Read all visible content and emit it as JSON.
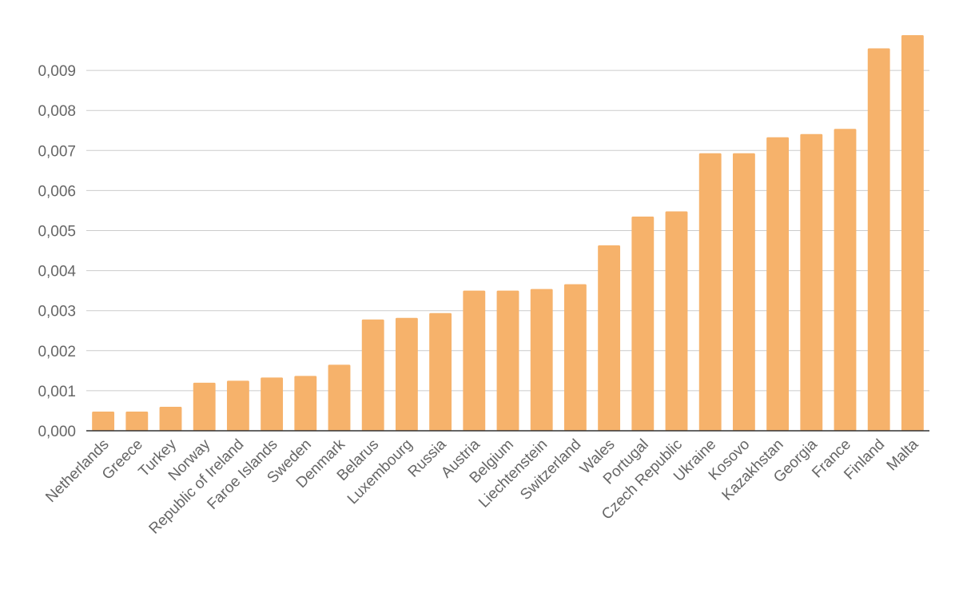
{
  "chart_data": {
    "type": "bar",
    "title": "",
    "xlabel": "",
    "ylabel": "",
    "ylim": [
      0,
      0.0099
    ],
    "yticks": [
      0,
      0.001,
      0.002,
      0.003,
      0.004,
      0.005,
      0.006,
      0.007,
      0.008,
      0.009
    ],
    "ytick_labels": [
      "0,000",
      "0,001",
      "0,002",
      "0,003",
      "0,004",
      "0,005",
      "0,006",
      "0,007",
      "0,008",
      "0,009"
    ],
    "grid": true,
    "legend": "none",
    "bar_color": "#F6B26B",
    "categories": [
      "Netherlands",
      "Greece",
      "Turkey",
      "Norway",
      "Republic of Ireland",
      "Faroe Islands",
      "Sweden",
      "Denmark",
      "Belarus",
      "Luxembourg",
      "Russia",
      "Austria",
      "Belgium",
      "Liechtenstein",
      "Switzerland",
      "Wales",
      "Portugal",
      "Czech Republic",
      "Ukraine",
      "Kosovo",
      "Kazakhstan",
      "Georgia",
      "France",
      "Finland",
      "Malta"
    ],
    "values": [
      0.00048,
      0.00048,
      0.0006,
      0.0012,
      0.00125,
      0.00133,
      0.00137,
      0.00165,
      0.00278,
      0.00282,
      0.00294,
      0.0035,
      0.0035,
      0.00354,
      0.00366,
      0.00463,
      0.00535,
      0.00548,
      0.00693,
      0.00693,
      0.00733,
      0.00741,
      0.00754,
      0.00955,
      0.00988
    ]
  }
}
